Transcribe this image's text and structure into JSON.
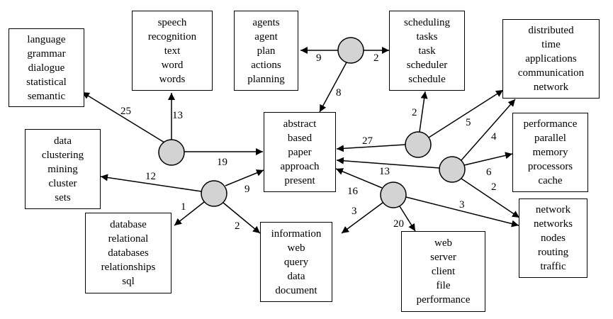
{
  "topics": {
    "language": [
      "language",
      "grammar",
      "dialogue",
      "statistical",
      "semantic"
    ],
    "speech": [
      "speech",
      "recognition",
      "text",
      "word",
      "words"
    ],
    "agents": [
      "agents",
      "agent",
      "plan",
      "actions",
      "planning"
    ],
    "scheduling": [
      "scheduling",
      "tasks",
      "task",
      "scheduler",
      "schedule"
    ],
    "distributed": [
      "distributed",
      "time",
      "applications",
      "communication",
      "network"
    ],
    "data": [
      "data",
      "clustering",
      "mining",
      "cluster",
      "sets"
    ],
    "abstract": [
      "abstract",
      "based",
      "paper",
      "approach",
      "present"
    ],
    "performance": [
      "performance",
      "parallel",
      "memory",
      "processors",
      "cache"
    ],
    "database": [
      "database",
      "relational",
      "databases",
      "relationships",
      "sql"
    ],
    "information": [
      "information",
      "web",
      "query",
      "data",
      "document"
    ],
    "web": [
      "web",
      "server",
      "client",
      "file",
      "performance"
    ],
    "network": [
      "network",
      "networks",
      "nodes",
      "routing",
      "traffic"
    ]
  },
  "edge_labels": {
    "e25": "25",
    "e13": "13",
    "e19": "19",
    "e9a": "9",
    "e2a": "2",
    "e8": "8",
    "e2b": "2",
    "e27": "27",
    "e5": "5",
    "e12": "12",
    "e9b": "9",
    "e1": "1",
    "e2c": "2",
    "e13b": "13",
    "e4": "4",
    "e6": "6",
    "e2d": "2",
    "e16": "16",
    "e3a": "3",
    "e20": "20",
    "e3b": "3"
  }
}
